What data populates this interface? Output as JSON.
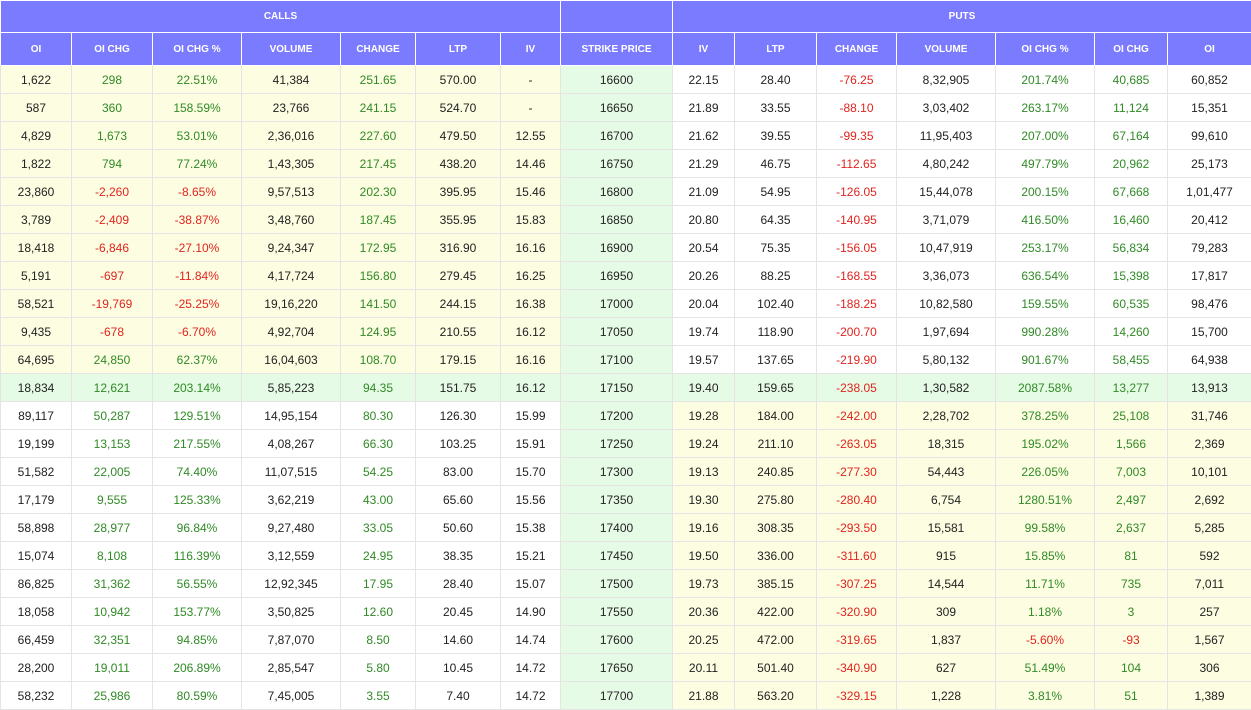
{
  "header": {
    "calls": "CALLS",
    "puts": "PUTS"
  },
  "columns": [
    "OI",
    "OI CHG",
    "OI CHG %",
    "VOLUME",
    "CHANGE",
    "LTP",
    "IV",
    "STRIKE PRICE",
    "IV",
    "LTP",
    "CHANGE",
    "VOLUME",
    "OI CHG %",
    "OI CHG",
    "OI"
  ],
  "rows": [
    [
      "1,622",
      "298",
      "22.51%",
      "41,384",
      "251.65",
      "570.00",
      "-",
      "16600",
      "22.15",
      "28.40",
      "-76.25",
      "8,32,905",
      "201.74%",
      "40,685",
      "60,852"
    ],
    [
      "587",
      "360",
      "158.59%",
      "23,766",
      "241.15",
      "524.70",
      "-",
      "16650",
      "21.89",
      "33.55",
      "-88.10",
      "3,03,402",
      "263.17%",
      "11,124",
      "15,351"
    ],
    [
      "4,829",
      "1,673",
      "53.01%",
      "2,36,016",
      "227.60",
      "479.50",
      "12.55",
      "16700",
      "21.62",
      "39.55",
      "-99.35",
      "11,95,403",
      "207.00%",
      "67,164",
      "99,610"
    ],
    [
      "1,822",
      "794",
      "77.24%",
      "1,43,305",
      "217.45",
      "438.20",
      "14.46",
      "16750",
      "21.29",
      "46.75",
      "-112.65",
      "4,80,242",
      "497.79%",
      "20,962",
      "25,173"
    ],
    [
      "23,860",
      "-2,260",
      "-8.65%",
      "9,57,513",
      "202.30",
      "395.95",
      "15.46",
      "16800",
      "21.09",
      "54.95",
      "-126.05",
      "15,44,078",
      "200.15%",
      "67,668",
      "1,01,477"
    ],
    [
      "3,789",
      "-2,409",
      "-38.87%",
      "3,48,760",
      "187.45",
      "355.95",
      "15.83",
      "16850",
      "20.80",
      "64.35",
      "-140.95",
      "3,71,079",
      "416.50%",
      "16,460",
      "20,412"
    ],
    [
      "18,418",
      "-6,846",
      "-27.10%",
      "9,24,347",
      "172.95",
      "316.90",
      "16.16",
      "16900",
      "20.54",
      "75.35",
      "-156.05",
      "10,47,919",
      "253.17%",
      "56,834",
      "79,283"
    ],
    [
      "5,191",
      "-697",
      "-11.84%",
      "4,17,724",
      "156.80",
      "279.45",
      "16.25",
      "16950",
      "20.26",
      "88.25",
      "-168.55",
      "3,36,073",
      "636.54%",
      "15,398",
      "17,817"
    ],
    [
      "58,521",
      "-19,769",
      "-25.25%",
      "19,16,220",
      "141.50",
      "244.15",
      "16.38",
      "17000",
      "20.04",
      "102.40",
      "-188.25",
      "10,82,580",
      "159.55%",
      "60,535",
      "98,476"
    ],
    [
      "9,435",
      "-678",
      "-6.70%",
      "4,92,704",
      "124.95",
      "210.55",
      "16.12",
      "17050",
      "19.74",
      "118.90",
      "-200.70",
      "1,97,694",
      "990.28%",
      "14,260",
      "15,700"
    ],
    [
      "64,695",
      "24,850",
      "62.37%",
      "16,04,603",
      "108.70",
      "179.15",
      "16.16",
      "17100",
      "19.57",
      "137.65",
      "-219.90",
      "5,80,132",
      "901.67%",
      "58,455",
      "64,938"
    ],
    [
      "18,834",
      "12,621",
      "203.14%",
      "5,85,223",
      "94.35",
      "151.75",
      "16.12",
      "17150",
      "19.40",
      "159.65",
      "-238.05",
      "1,30,582",
      "2087.58%",
      "13,277",
      "13,913"
    ],
    [
      "89,117",
      "50,287",
      "129.51%",
      "14,95,154",
      "80.30",
      "126.30",
      "15.99",
      "17200",
      "19.28",
      "184.00",
      "-242.00",
      "2,28,702",
      "378.25%",
      "25,108",
      "31,746"
    ],
    [
      "19,199",
      "13,153",
      "217.55%",
      "4,08,267",
      "66.30",
      "103.25",
      "15.91",
      "17250",
      "19.24",
      "211.10",
      "-263.05",
      "18,315",
      "195.02%",
      "1,566",
      "2,369"
    ],
    [
      "51,582",
      "22,005",
      "74.40%",
      "11,07,515",
      "54.25",
      "83.00",
      "15.70",
      "17300",
      "19.13",
      "240.85",
      "-277.30",
      "54,443",
      "226.05%",
      "7,003",
      "10,101"
    ],
    [
      "17,179",
      "9,555",
      "125.33%",
      "3,62,219",
      "43.00",
      "65.60",
      "15.56",
      "17350",
      "19.30",
      "275.80",
      "-280.40",
      "6,754",
      "1280.51%",
      "2,497",
      "2,692"
    ],
    [
      "58,898",
      "28,977",
      "96.84%",
      "9,27,480",
      "33.05",
      "50.60",
      "15.38",
      "17400",
      "19.16",
      "308.35",
      "-293.50",
      "15,581",
      "99.58%",
      "2,637",
      "5,285"
    ],
    [
      "15,074",
      "8,108",
      "116.39%",
      "3,12,559",
      "24.95",
      "38.35",
      "15.21",
      "17450",
      "19.50",
      "336.00",
      "-311.60",
      "915",
      "15.85%",
      "81",
      "592"
    ],
    [
      "86,825",
      "31,362",
      "56.55%",
      "12,92,345",
      "17.95",
      "28.40",
      "15.07",
      "17500",
      "19.73",
      "385.15",
      "-307.25",
      "14,544",
      "11.71%",
      "735",
      "7,011"
    ],
    [
      "18,058",
      "10,942",
      "153.77%",
      "3,50,825",
      "12.60",
      "20.45",
      "14.90",
      "17550",
      "20.36",
      "422.00",
      "-320.90",
      "309",
      "1.18%",
      "3",
      "257"
    ],
    [
      "66,459",
      "32,351",
      "94.85%",
      "7,87,070",
      "8.50",
      "14.60",
      "14.74",
      "17600",
      "20.25",
      "472.00",
      "-319.65",
      "1,837",
      "-5.60%",
      "-93",
      "1,567"
    ],
    [
      "28,200",
      "19,011",
      "206.89%",
      "2,85,547",
      "5.80",
      "10.45",
      "14.72",
      "17650",
      "20.11",
      "501.40",
      "-340.90",
      "627",
      "51.49%",
      "104",
      "306"
    ],
    [
      "58,232",
      "25,986",
      "80.59%",
      "7,45,005",
      "3.55",
      "7.40",
      "14.72",
      "17700",
      "21.88",
      "563.20",
      "-329.15",
      "1,228",
      "3.81%",
      "51",
      "1,389"
    ]
  ],
  "atm_row_index": 11,
  "colors": {
    "header": "#7b7bff",
    "in_the_money": "#fdfde2",
    "strike": "#e6fbe6",
    "positive": "#2f8a25",
    "negative": "#e0241f"
  }
}
